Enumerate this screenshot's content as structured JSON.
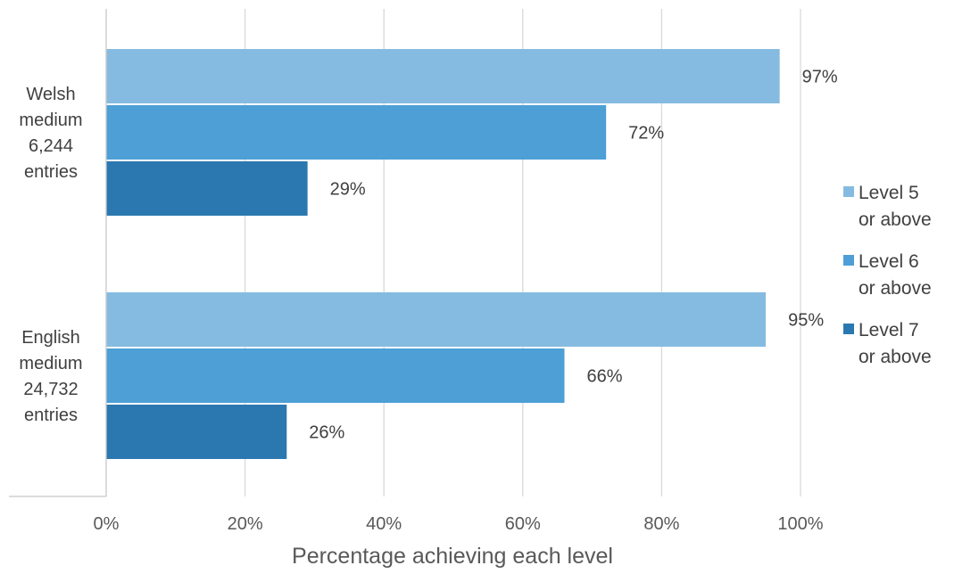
{
  "chart_data": {
    "type": "bar",
    "orientation": "horizontal",
    "categories": [
      [
        "Welsh",
        "medium",
        "6,244",
        "entries"
      ],
      [
        "English",
        "medium",
        "24,732",
        "entries"
      ]
    ],
    "series": [
      {
        "name": "Level 5 or above",
        "legend_lines": [
          "Level 5",
          "or above"
        ],
        "color": "#85BBE0",
        "values": [
          97,
          95
        ],
        "labels": [
          "97%",
          "95%"
        ]
      },
      {
        "name": "Level 6 or above",
        "legend_lines": [
          "Level 6",
          "or above"
        ],
        "color": "#4D9FD6",
        "values": [
          72,
          66
        ],
        "labels": [
          "72%",
          "66%"
        ]
      },
      {
        "name": "Level 7 or above",
        "legend_lines": [
          "Level 7",
          "or above"
        ],
        "color": "#2B78B0",
        "values": [
          29,
          26
        ],
        "labels": [
          "29%",
          "26%"
        ]
      }
    ],
    "xlabel": "Percentage achieving each level",
    "ylabel": "",
    "xlim": [
      0,
      100
    ],
    "x_ticks": [
      "0%",
      "20%",
      "40%",
      "60%",
      "80%",
      "100%"
    ],
    "grid": "vertical",
    "legend_position": "right",
    "colors": {
      "axis": "#c8c8c8",
      "grid": "#d9d9d9",
      "text": "#404040",
      "tick_text": "#595959"
    }
  }
}
